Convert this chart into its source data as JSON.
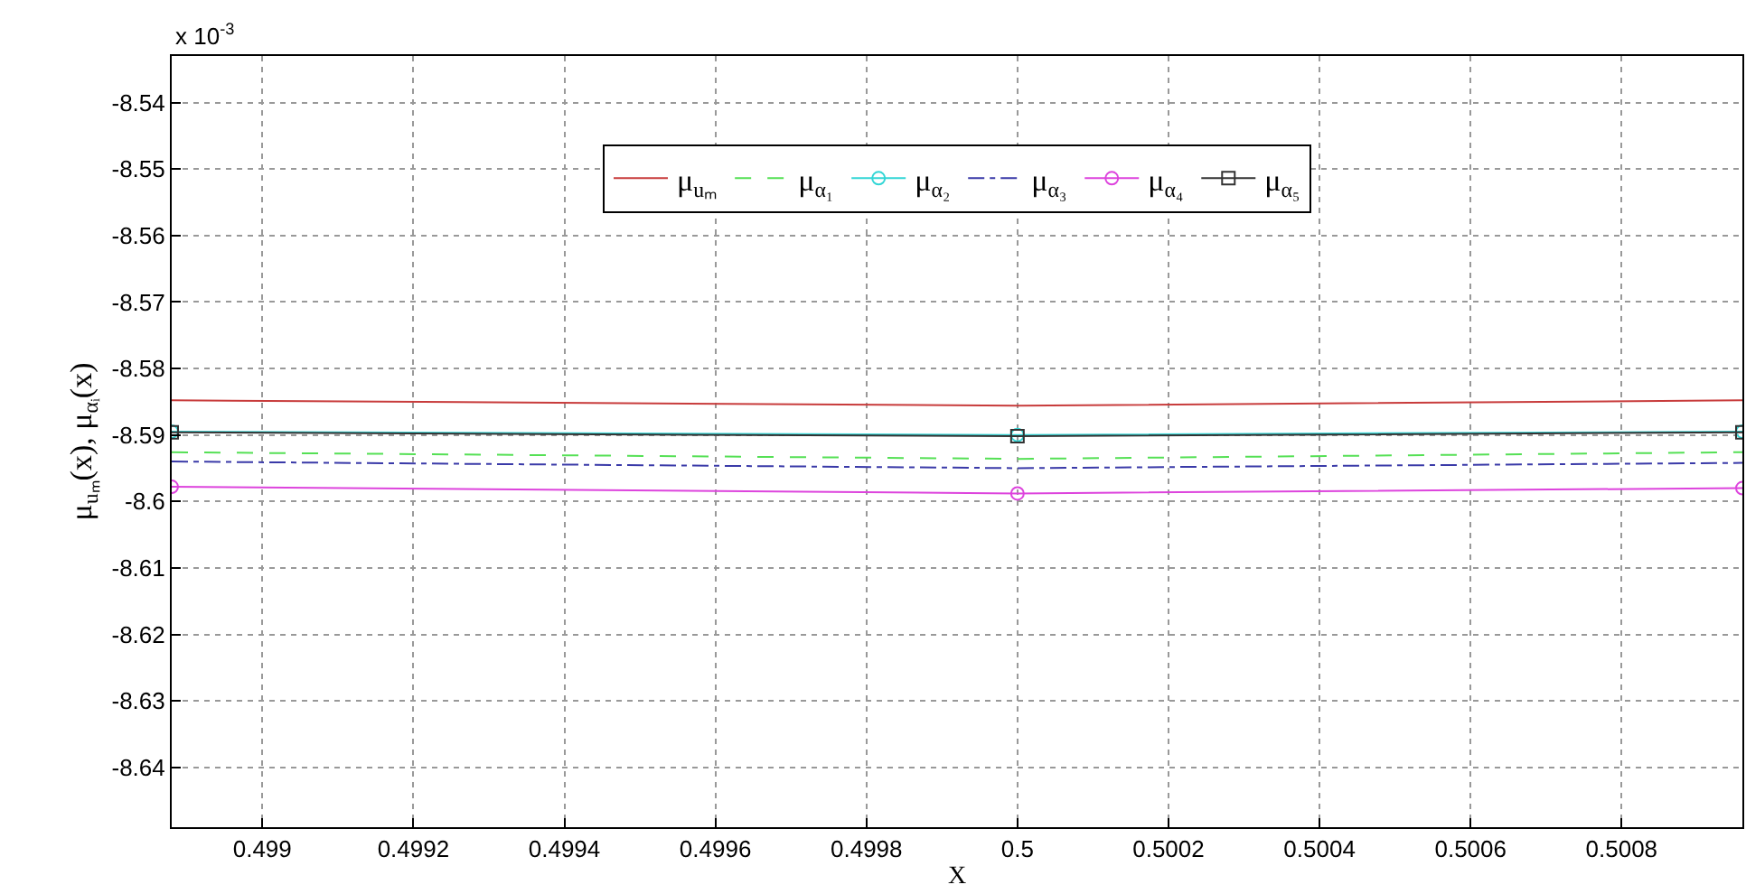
{
  "chart_data": {
    "type": "line",
    "xlabel": "X",
    "ylabel": "μ$_{uₘ}$(x), μ$_{αᵢ}$(x)",
    "annotations": [
      "x 10$^{-3}$"
    ],
    "x": [
      0.49888,
      0.5,
      0.50096
    ],
    "series": [
      {
        "name": "μ$_{uₘ}$",
        "color": "#c83c3c",
        "values": [
          -8.5848,
          -8.5856,
          -8.5848
        ],
        "line_style": "solid",
        "marker": "none"
      },
      {
        "name": "μ$_{α₁}$",
        "color": "#55e055",
        "values": [
          -8.5926,
          -8.5936,
          -8.5926
        ],
        "line_style": "dashed",
        "marker": "none"
      },
      {
        "name": "μ$_{α₂}$",
        "color": "#33d6d6",
        "values": [
          -8.5895,
          -8.59,
          -8.5895
        ],
        "line_style": "solid",
        "marker": "circle"
      },
      {
        "name": "μ$_{α₃}$",
        "color": "#3a3aa8",
        "values": [
          -8.594,
          -8.595,
          -8.5942
        ],
        "line_style": "dashdot",
        "marker": "none"
      },
      {
        "name": "μ$_{α₄}$",
        "color": "#dd44dd",
        "values": [
          -8.5978,
          -8.5988,
          -8.598
        ],
        "line_style": "solid",
        "marker": "circle"
      },
      {
        "name": "μ$_{α₅}$",
        "color": "#333333",
        "values": [
          -8.5896,
          -8.5902,
          -8.5896
        ],
        "line_style": "solid",
        "marker": "square"
      }
    ],
    "xlim": [
      0.49888,
      0.50096
    ],
    "xticks": [
      0.499,
      0.4992,
      0.4994,
      0.4996,
      0.4998,
      0.5,
      0.5002,
      0.5004,
      0.5006,
      0.5008
    ],
    "ylim": [
      -8.649,
      -8.533
    ],
    "yticks": [
      -8.64,
      -8.63,
      -8.62,
      -8.61,
      -8.6,
      -8.59,
      -8.58,
      -8.57,
      -8.56,
      -8.55,
      -8.54
    ],
    "grid": true,
    "legend": "top"
  }
}
